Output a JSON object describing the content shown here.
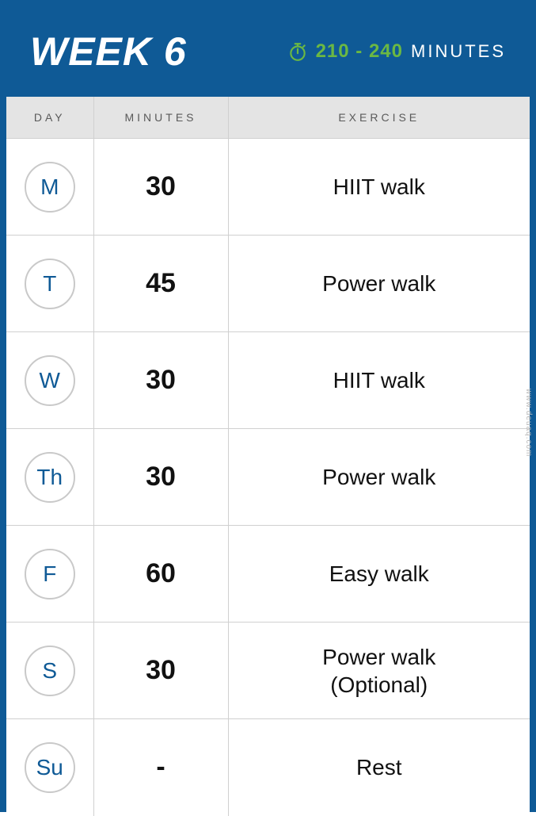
{
  "header": {
    "title": "WEEK 6",
    "minutes_range": "210 - 240",
    "minutes_label": "MINUTES",
    "icon_color": "#6bb843",
    "bg_color": "#0f5a96"
  },
  "table": {
    "columns": {
      "day": "DAY",
      "minutes": "MINUTES",
      "exercise": "EXERCISE"
    },
    "header_bg": "#e4e4e4",
    "border_color": "#d0d0d0",
    "day_circle_border": "#c9c9c9",
    "day_text_color": "#0f5a96",
    "rows": [
      {
        "day": "M",
        "minutes": "30",
        "exercise": "HIIT walk"
      },
      {
        "day": "T",
        "minutes": "45",
        "exercise": "Power walk"
      },
      {
        "day": "W",
        "minutes": "30",
        "exercise": "HIIT walk"
      },
      {
        "day": "Th",
        "minutes": "30",
        "exercise": "Power walk"
      },
      {
        "day": "F",
        "minutes": "60",
        "exercise": "Easy walk"
      },
      {
        "day": "S",
        "minutes": "30",
        "exercise": "Power walk\n(Optional)"
      },
      {
        "day": "Su",
        "minutes": "-",
        "exercise": "Rest"
      }
    ]
  },
  "watermark": "www.deuaq.com"
}
